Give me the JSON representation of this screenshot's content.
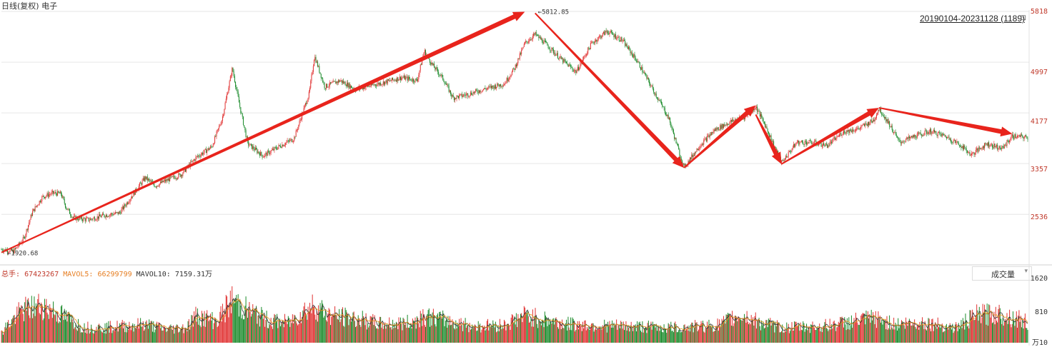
{
  "title": "日线(复权) 电子",
  "range_label": "20190104-20231128 (1189)",
  "lock_icon": "lock-icon",
  "chart_data": {
    "type": "candlestick",
    "price_axis_ticks": [
      5818,
      4997,
      4177,
      3357,
      2536
    ],
    "y_range": [
      1800,
      5818
    ],
    "annotations": {
      "low": "1920.68",
      "high": "5812.85"
    },
    "trend_arrows": [
      {
        "from": [
          0,
          1920
        ],
        "to": [
          0.51,
          5812
        ]
      },
      {
        "from": [
          0.52,
          5790
        ],
        "to": [
          0.665,
          3290
        ]
      },
      {
        "from": [
          0.665,
          3290
        ],
        "to": [
          0.735,
          4300
        ]
      },
      {
        "from": [
          0.735,
          4150
        ],
        "to": [
          0.76,
          3350
        ]
      },
      {
        "from": [
          0.76,
          3350
        ],
        "to": [
          0.855,
          4260
        ]
      },
      {
        "from": [
          0.855,
          4260
        ],
        "to": [
          0.985,
          3840
        ]
      }
    ],
    "price_path": [
      [
        0,
        1970
      ],
      [
        0.012,
        1940
      ],
      [
        0.022,
        2150
      ],
      [
        0.03,
        2570
      ],
      [
        0.04,
        2820
      ],
      [
        0.05,
        2880
      ],
      [
        0.058,
        2870
      ],
      [
        0.063,
        2650
      ],
      [
        0.07,
        2480
      ],
      [
        0.085,
        2450
      ],
      [
        0.1,
        2520
      ],
      [
        0.115,
        2560
      ],
      [
        0.13,
        2900
      ],
      [
        0.14,
        3130
      ],
      [
        0.15,
        3000
      ],
      [
        0.16,
        3080
      ],
      [
        0.175,
        3180
      ],
      [
        0.19,
        3460
      ],
      [
        0.205,
        3630
      ],
      [
        0.215,
        4080
      ],
      [
        0.225,
        4900
      ],
      [
        0.232,
        4300
      ],
      [
        0.24,
        3680
      ],
      [
        0.255,
        3480
      ],
      [
        0.27,
        3630
      ],
      [
        0.285,
        3760
      ],
      [
        0.3,
        4500
      ],
      [
        0.305,
        5100
      ],
      [
        0.315,
        4600
      ],
      [
        0.33,
        4700
      ],
      [
        0.345,
        4560
      ],
      [
        0.36,
        4620
      ],
      [
        0.375,
        4680
      ],
      [
        0.39,
        4750
      ],
      [
        0.405,
        4700
      ],
      [
        0.412,
        5180
      ],
      [
        0.42,
        4950
      ],
      [
        0.43,
        4740
      ],
      [
        0.44,
        4420
      ],
      [
        0.455,
        4480
      ],
      [
        0.47,
        4560
      ],
      [
        0.49,
        4650
      ],
      [
        0.5,
        4900
      ],
      [
        0.51,
        5300
      ],
      [
        0.52,
        5450
      ],
      [
        0.53,
        5300
      ],
      [
        0.545,
        5050
      ],
      [
        0.56,
        4840
      ],
      [
        0.575,
        5300
      ],
      [
        0.59,
        5500
      ],
      [
        0.605,
        5350
      ],
      [
        0.62,
        5000
      ],
      [
        0.635,
        4550
      ],
      [
        0.65,
        4100
      ],
      [
        0.665,
        3290
      ],
      [
        0.68,
        3640
      ],
      [
        0.695,
        3900
      ],
      [
        0.71,
        4030
      ],
      [
        0.725,
        4120
      ],
      [
        0.735,
        4280
      ],
      [
        0.745,
        3950
      ],
      [
        0.76,
        3370
      ],
      [
        0.775,
        3700
      ],
      [
        0.79,
        3700
      ],
      [
        0.805,
        3650
      ],
      [
        0.82,
        3870
      ],
      [
        0.835,
        3920
      ],
      [
        0.85,
        4060
      ],
      [
        0.855,
        4250
      ],
      [
        0.865,
        4000
      ],
      [
        0.875,
        3700
      ],
      [
        0.89,
        3800
      ],
      [
        0.905,
        3880
      ],
      [
        0.92,
        3800
      ],
      [
        0.935,
        3650
      ],
      [
        0.945,
        3500
      ],
      [
        0.96,
        3680
      ],
      [
        0.975,
        3600
      ],
      [
        0.985,
        3800
      ],
      [
        1.0,
        3780
      ]
    ],
    "volume": {
      "total_label": "总手:",
      "total_value": "67423267",
      "mavol5_label": "MAVOL5:",
      "mavol5_value": "66299799",
      "mavol10_label": "MAVOL10:",
      "mavol10_value": "7159.31万",
      "axis_ticks": [
        "1620",
        "810",
        "万10"
      ],
      "max": 1620,
      "profile": [
        [
          0,
          310
        ],
        [
          0.02,
          900
        ],
        [
          0.04,
          1050
        ],
        [
          0.06,
          750
        ],
        [
          0.08,
          430
        ],
        [
          0.1,
          420
        ],
        [
          0.12,
          470
        ],
        [
          0.14,
          520
        ],
        [
          0.16,
          380
        ],
        [
          0.18,
          430
        ],
        [
          0.19,
          760
        ],
        [
          0.21,
          600
        ],
        [
          0.225,
          1200
        ],
        [
          0.24,
          900
        ],
        [
          0.26,
          620
        ],
        [
          0.28,
          560
        ],
        [
          0.295,
          900
        ],
        [
          0.305,
          1050
        ],
        [
          0.32,
          760
        ],
        [
          0.35,
          650
        ],
        [
          0.37,
          520
        ],
        [
          0.4,
          560
        ],
        [
          0.41,
          760
        ],
        [
          0.43,
          640
        ],
        [
          0.46,
          460
        ],
        [
          0.49,
          500
        ],
        [
          0.51,
          760
        ],
        [
          0.53,
          640
        ],
        [
          0.55,
          520
        ],
        [
          0.58,
          480
        ],
        [
          0.62,
          450
        ],
        [
          0.66,
          420
        ],
        [
          0.7,
          500
        ],
        [
          0.72,
          780
        ],
        [
          0.74,
          560
        ],
        [
          0.76,
          420
        ],
        [
          0.8,
          460
        ],
        [
          0.85,
          680
        ],
        [
          0.87,
          520
        ],
        [
          0.9,
          560
        ],
        [
          0.93,
          420
        ],
        [
          0.95,
          760
        ],
        [
          0.97,
          820
        ],
        [
          0.99,
          680
        ],
        [
          1.0,
          560
        ]
      ]
    }
  },
  "volume_selector": {
    "label": "成交量",
    "arrow": "▾"
  }
}
